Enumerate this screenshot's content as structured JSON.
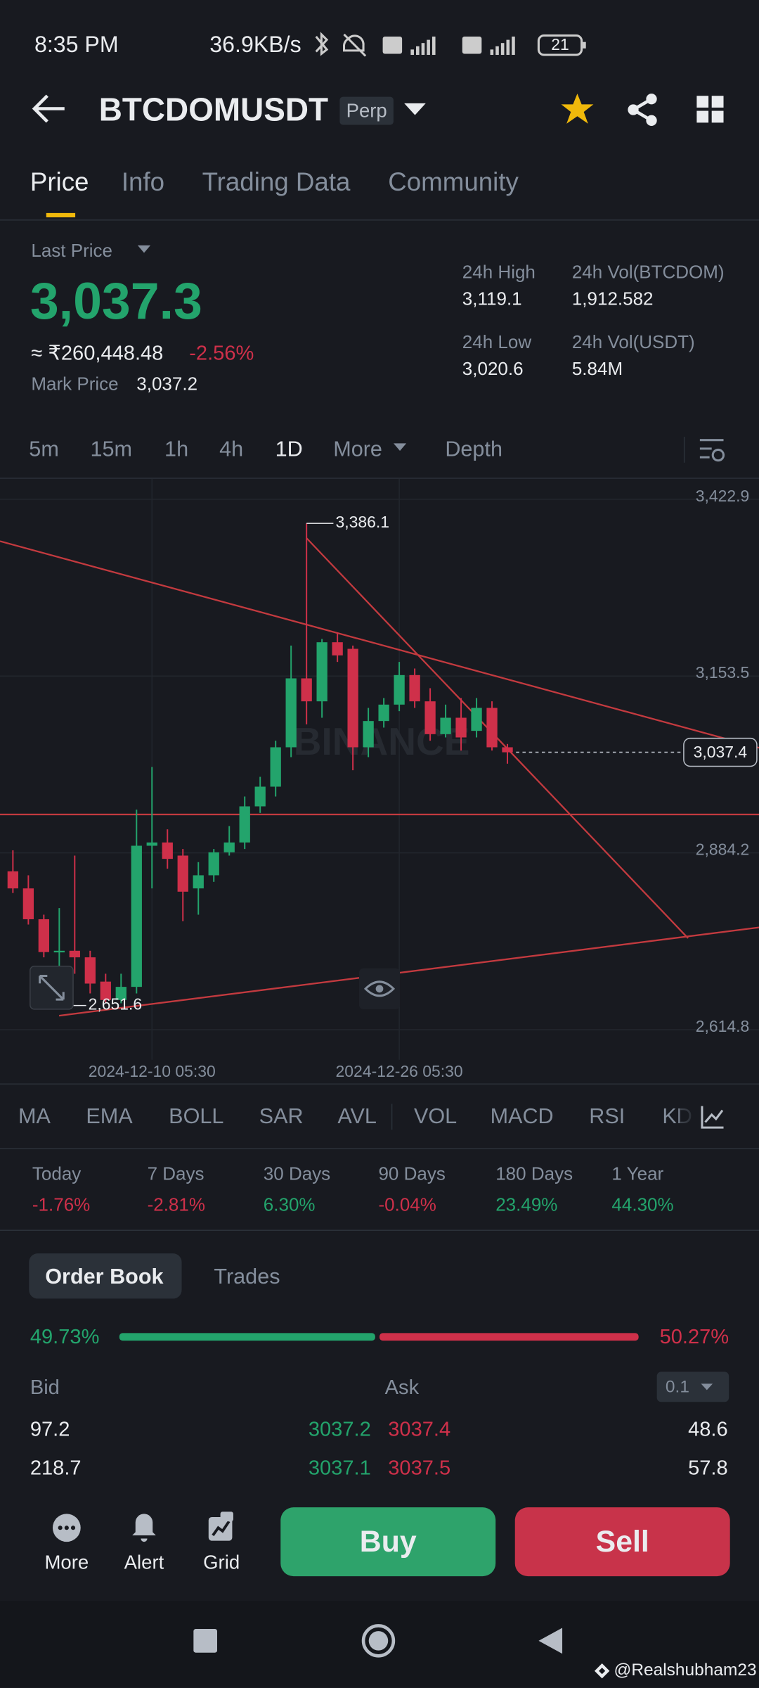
{
  "status_bar": {
    "time": "8:35 PM",
    "speed": "36.9KB/s",
    "battery": "21"
  },
  "header": {
    "symbol": "BTCDOMUSDT",
    "badge": "Perp"
  },
  "tabs": [
    "Price",
    "Info",
    "Trading Data",
    "Community"
  ],
  "ticker": {
    "last_price_label": "Last Price",
    "last_price": "3,037.3",
    "inr": "≈ ₹260,448.48",
    "change": "-2.56%",
    "mark_price_label": "Mark Price",
    "mark_price": "3,037.2",
    "stats": [
      {
        "label": "24h High",
        "value": "3,119.1"
      },
      {
        "label": "24h Vol(BTCDOM)",
        "value": "1,912.582"
      },
      {
        "label": "24h Low",
        "value": "3,020.6"
      },
      {
        "label": "24h Vol(USDT)",
        "value": "5.84M"
      }
    ]
  },
  "intervals": [
    "5m",
    "15m",
    "1h",
    "4h",
    "1D",
    "More",
    "Depth"
  ],
  "chart_data": {
    "type": "candlestick",
    "watermark": "BINANCE",
    "categories": [
      null,
      null,
      null,
      null,
      null,
      null,
      null,
      null,
      null,
      "2024-12-10 05:30",
      null,
      null,
      null,
      null,
      null,
      null,
      null,
      null,
      null,
      null,
      null,
      null,
      null,
      null,
      null,
      "2024-12-26 05:30",
      null,
      null,
      null,
      null,
      null,
      null,
      null
    ],
    "open": [
      2856,
      2830,
      2783,
      2733,
      2735,
      2725,
      2688,
      2660,
      2680,
      2895,
      2900,
      2880,
      2830,
      2850,
      2885,
      2900,
      2955,
      2985,
      3045,
      3150,
      3115,
      3205,
      3195,
      3045,
      3085,
      3110,
      3155,
      3115,
      3065,
      3090,
      3070,
      3105,
      3045
    ],
    "high": [
      2888,
      2850,
      2790,
      2800,
      2880,
      2735,
      2700,
      2700,
      2950,
      3015,
      2920,
      2890,
      2870,
      2890,
      2925,
      2970,
      3000,
      3055,
      3200,
      3386.1,
      3210,
      3220,
      3200,
      3105,
      3120,
      3175,
      3165,
      3135,
      3110,
      3120,
      3120,
      3115,
      3050
    ],
    "low": [
      2823,
      2775,
      2725,
      2651.6,
      2700,
      2670,
      2655,
      2655,
      2670,
      2830,
      2860,
      2780,
      2790,
      2840,
      2880,
      2890,
      2945,
      2970,
      3030,
      3080,
      3090,
      3175,
      3010,
      3030,
      3075,
      3100,
      3105,
      3055,
      3060,
      3040,
      3060,
      3040,
      3020
    ],
    "close": [
      2830,
      2783,
      2733,
      2735,
      2725,
      2685,
      2660,
      2680,
      2895,
      2900,
      2875,
      2825,
      2850,
      2885,
      2900,
      2955,
      2985,
      3045,
      3150,
      3115,
      3205,
      3185,
      3045,
      3085,
      3110,
      3155,
      3115,
      3065,
      3090,
      3060,
      3105,
      3045,
      3037.4
    ],
    "high_label": "3,386.1",
    "low_label": "2,651.6",
    "last_label": "3,037.4",
    "ylim": [
      2614.8,
      3422.9
    ],
    "yticks": [
      {
        "value": 2614.8,
        "label": "2,614.8"
      },
      {
        "value": 2884.2,
        "label": "2,884.2"
      },
      {
        "value": 3153.5,
        "label": "3,153.5"
      },
      {
        "value": 3422.9,
        "label": "3,422.9"
      }
    ],
    "up_color": "#23a46c",
    "down_color": "#cf304a",
    "grid": true
  },
  "indicators": [
    "MA",
    "EMA",
    "BOLL",
    "SAR",
    "AVL",
    "VOL",
    "MACD",
    "RSI",
    "KD"
  ],
  "performance": [
    {
      "label": "Today",
      "value": "-1.76%"
    },
    {
      "label": "7 Days",
      "value": "-2.81%"
    },
    {
      "label": "30 Days",
      "value": "6.30%"
    },
    {
      "label": "90 Days",
      "value": "-0.04%"
    },
    {
      "label": "180 Days",
      "value": "23.49%"
    },
    {
      "label": "1 Year",
      "value": "44.30%"
    }
  ],
  "order_book": {
    "tabs": [
      "Order Book",
      "Trades"
    ],
    "bid_ratio": "49.73%",
    "ask_ratio": "50.27%",
    "bid_label": "Bid",
    "ask_label": "Ask",
    "precision": "0.1",
    "rows": [
      [
        "97.2",
        "3037.2",
        "3037.4",
        "48.6"
      ],
      [
        "218.7",
        "3037.1",
        "3037.5",
        "57.8"
      ]
    ]
  },
  "bottom_bar": {
    "actions": [
      "More",
      "Alert",
      "Grid"
    ],
    "buy": "Buy",
    "sell": "Sell"
  },
  "watermark": "@Realshubham23"
}
